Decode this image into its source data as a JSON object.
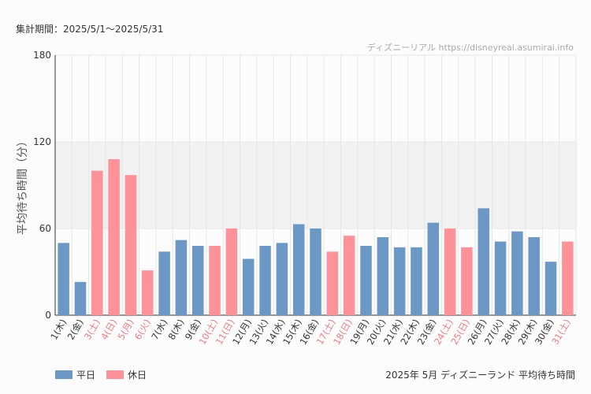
{
  "header": {
    "period": "集計期間：2025/5/1～2025/5/31",
    "credit": "ディズニーリアル https://disneyreal.asumirai.info"
  },
  "footer": {
    "subtitle": "2025年 5月 ディズニーランド 平均待ち時間"
  },
  "legend": [
    {
      "label": "平日",
      "color": "#6b98c5"
    },
    {
      "label": "休日",
      "color": "#fe9298"
    }
  ],
  "chart_data": {
    "type": "bar",
    "title": "2025年 5月 ディズニーランド 平均待ち時間",
    "ylabel": "平均待ち時間（分）",
    "xlabel": "",
    "ylim": [
      0,
      180
    ],
    "yticks": [
      0,
      60,
      120,
      180
    ],
    "band": [
      60,
      120
    ],
    "categories": [
      "1(木)",
      "2(金)",
      "3(土)",
      "4(日)",
      "5(月)",
      "6(火)",
      "7(水)",
      "8(木)",
      "9(金)",
      "10(土)",
      "11(日)",
      "12(月)",
      "13(火)",
      "14(水)",
      "15(木)",
      "16(金)",
      "17(土)",
      "18(日)",
      "19(月)",
      "20(火)",
      "21(水)",
      "22(木)",
      "23(金)",
      "24(土)",
      "25(日)",
      "26(月)",
      "27(火)",
      "28(水)",
      "29(木)",
      "30(金)",
      "31(土)"
    ],
    "values": [
      50,
      23,
      100,
      108,
      97,
      31,
      44,
      52,
      48,
      48,
      60,
      39,
      48,
      50,
      63,
      60,
      44,
      55,
      48,
      54,
      47,
      47,
      64,
      60,
      47,
      74,
      51,
      58,
      54,
      37,
      51
    ],
    "holiday": [
      false,
      false,
      true,
      true,
      true,
      true,
      false,
      false,
      false,
      true,
      true,
      false,
      false,
      false,
      false,
      false,
      true,
      true,
      false,
      false,
      false,
      false,
      false,
      true,
      true,
      false,
      false,
      false,
      false,
      false,
      true
    ],
    "series": [
      {
        "name": "平日",
        "color": "#6b98c5"
      },
      {
        "name": "休日",
        "color": "#fe9298"
      }
    ]
  }
}
